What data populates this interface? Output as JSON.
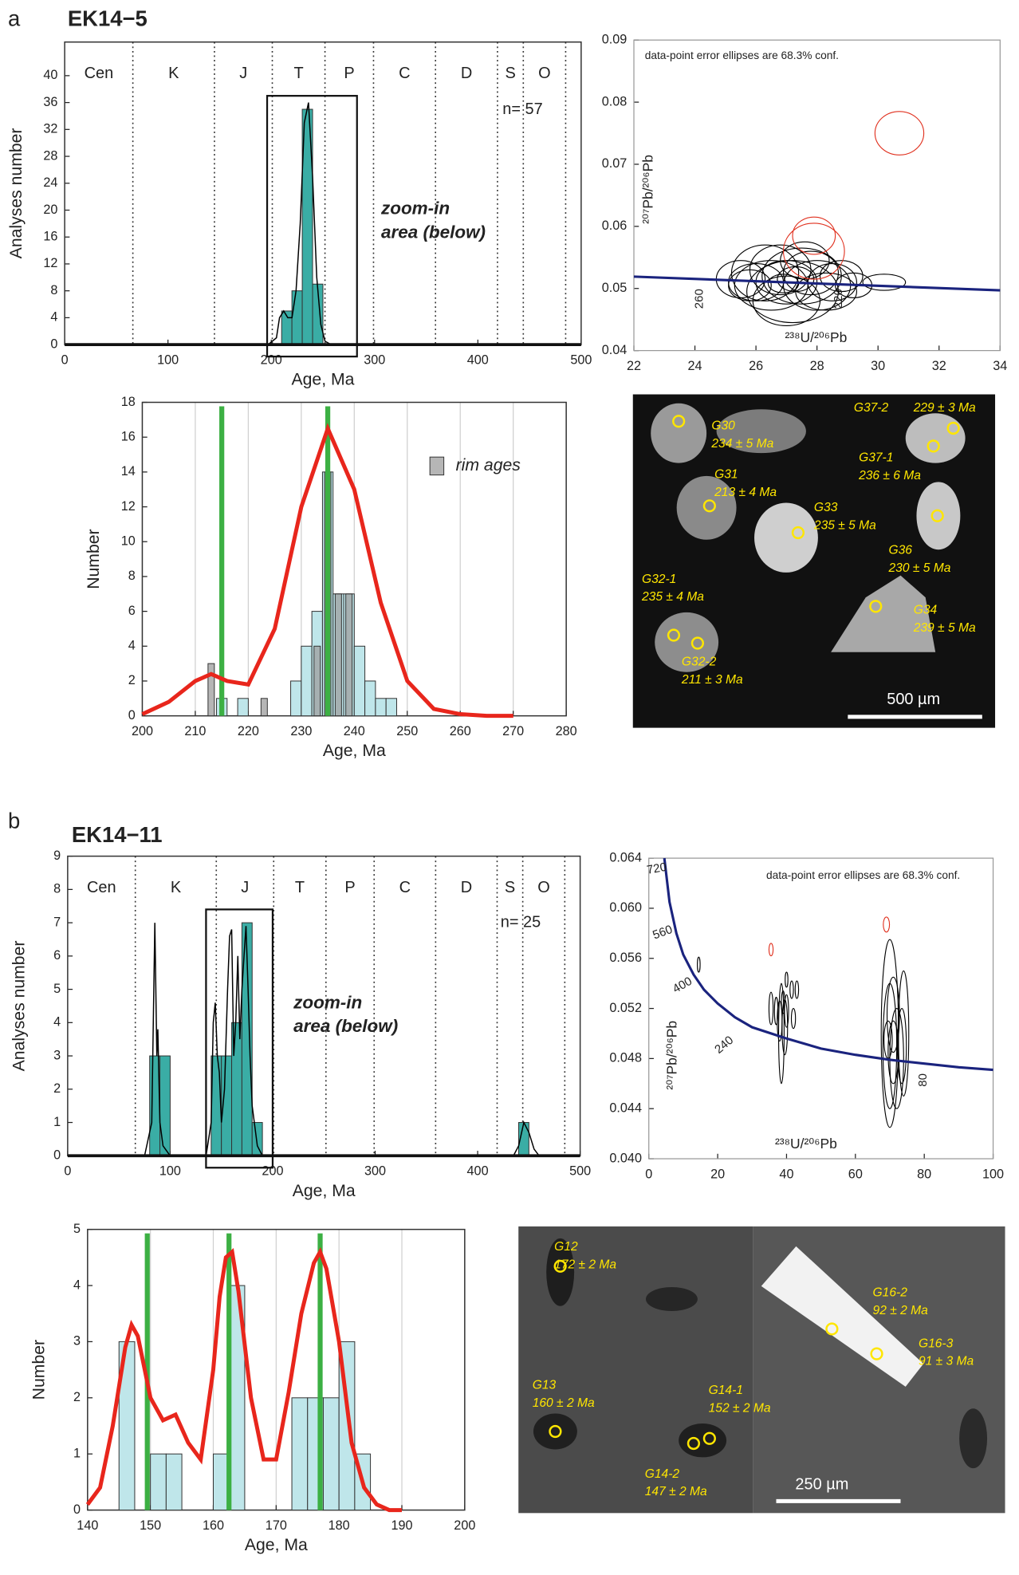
{
  "panels": [
    {
      "letter": "a",
      "sample": "EK14−5"
    },
    {
      "letter": "b",
      "sample": "EK14−11"
    }
  ],
  "chart_data": [
    {
      "type": "histogram",
      "xlabel": "Age, Ma",
      "ylabel": "Analyses number",
      "xlim": [
        0,
        500
      ],
      "ylim": [
        0,
        45
      ],
      "xticks": [
        0,
        100,
        200,
        300,
        400,
        500
      ],
      "yticks": [
        0,
        4,
        8,
        12,
        16,
        20,
        24,
        28,
        32,
        36,
        40
      ],
      "bins": [
        210,
        220,
        230,
        240,
        250
      ],
      "series": [
        {
          "color": "#3aada5",
          "values": [
            5,
            8,
            35,
            9
          ]
        }
      ],
      "curves": [
        {
          "color": "#000000",
          "x": [
            197,
            205,
            208,
            212,
            216,
            220,
            224,
            228,
            232,
            236,
            240,
            244,
            248,
            252,
            258
          ],
          "y": [
            0,
            1,
            4,
            5,
            4,
            4,
            8,
            18,
            33,
            36,
            25,
            10,
            3,
            0.5,
            0
          ]
        }
      ],
      "period_boundaries": [
        66,
        145,
        201,
        252,
        299,
        359,
        419,
        444,
        485
      ],
      "periods": [
        "Cen",
        "K",
        "J",
        "T",
        "P",
        "C",
        "D",
        "S",
        "O"
      ],
      "zoom_box": {
        "x": [
          196,
          283
        ],
        "y": [
          0,
          37
        ]
      },
      "n_label": "n= 57",
      "zoom_label": [
        "zoom-in",
        "area (below)"
      ]
    },
    {
      "type": "concordia",
      "xlabel": "²³⁸U/²⁰⁶Pb",
      "ylabel": "²⁰⁷Pb/²⁰⁶Pb",
      "note": "data-point error ellipses are 68.3% conf.",
      "xlim": [
        22,
        34
      ],
      "ylim": [
        0.04,
        0.09
      ],
      "xticks": [
        22,
        24,
        26,
        28,
        30,
        32,
        34
      ],
      "yticks": [
        0.04,
        0.05,
        0.06,
        0.07,
        0.08,
        0.09
      ],
      "curve": {
        "color": "#1a237e",
        "x": [
          22,
          34
        ],
        "y": [
          0.0519,
          0.0497
        ]
      },
      "age_labels": [
        260,
        220
      ],
      "series": [
        {
          "color": "#000000",
          "ellipses": [
            [
              26.5,
              0.0505,
              1.2,
              0.004
            ],
            [
              27,
              0.051,
              1,
              0.0035
            ],
            [
              27.5,
              0.052,
              1.3,
              0.0045
            ],
            [
              26,
              0.051,
              0.9,
              0.003
            ],
            [
              28,
              0.0505,
              1.1,
              0.004
            ],
            [
              27.2,
              0.0495,
              1.5,
              0.005
            ],
            [
              26.8,
              0.053,
              1,
              0.004
            ],
            [
              27.8,
              0.0525,
              0.9,
              0.0035
            ],
            [
              28.5,
              0.051,
              0.8,
              0.003
            ],
            [
              25.8,
              0.0505,
              0.7,
              0.0025
            ],
            [
              27.3,
              0.0515,
              0.6,
              0.002
            ],
            [
              26.3,
              0.0525,
              1.1,
              0.0045
            ],
            [
              28.3,
              0.0495,
              1,
              0.003
            ],
            [
              29.2,
              0.0505,
              0.6,
              0.002
            ],
            [
              30.2,
              0.051,
              0.7,
              0.0013
            ],
            [
              27,
              0.048,
              1.1,
              0.004
            ],
            [
              27.6,
              0.0545,
              0.8,
              0.003
            ],
            [
              26.9,
              0.0508,
              0.5,
              0.0015
            ],
            [
              25.5,
              0.0515,
              0.8,
              0.003
            ],
            [
              28.8,
              0.052,
              0.7,
              0.0025
            ]
          ]
        },
        {
          "color": "#e0301e",
          "ellipses": [
            [
              30.7,
              0.075,
              0.8,
              0.0035
            ],
            [
              27.9,
              0.0585,
              0.7,
              0.003
            ],
            [
              27.9,
              0.056,
              1,
              0.0045
            ]
          ]
        }
      ]
    },
    {
      "type": "histogram",
      "xlabel": "Age, Ma",
      "ylabel": "Number",
      "xlim": [
        200,
        280
      ],
      "ylim": [
        0,
        18
      ],
      "xticks": [
        200,
        210,
        220,
        230,
        240,
        250,
        260,
        270,
        280
      ],
      "yticks": [
        0,
        2,
        4,
        6,
        8,
        10,
        12,
        14,
        16,
        18
      ],
      "grid": "x",
      "bins": [
        210,
        212,
        214,
        216,
        218,
        220,
        222,
        224,
        226,
        228,
        230,
        232,
        234,
        236,
        238,
        240,
        242,
        244,
        246,
        248
      ],
      "series": [
        {
          "color": "#bfe6ea",
          "values": [
            0,
            0,
            1,
            0,
            1,
            0,
            0,
            0,
            0,
            2,
            4,
            6,
            14,
            7,
            7,
            4,
            2,
            1,
            1
          ]
        },
        {
          "name": "rim ages",
          "color": "#9e9e9e",
          "values": [
            0,
            3,
            0,
            0,
            0,
            0,
            1,
            0,
            0,
            0,
            0,
            4,
            14,
            7,
            7,
            0,
            0,
            0,
            0
          ]
        }
      ],
      "curves": [
        {
          "color": "#e8261c",
          "x": [
            200,
            205,
            210,
            213,
            216,
            220,
            225,
            230,
            235,
            240,
            245,
            250,
            255,
            260,
            265,
            270
          ],
          "y": [
            0.1,
            0.8,
            2,
            2.4,
            2,
            1.8,
            5,
            12,
            16.5,
            13,
            6.5,
            2,
            0.4,
            0.1,
            0,
            0
          ]
        }
      ],
      "markers": {
        "color": "#3cb043",
        "x": [
          215,
          235
        ]
      }
    },
    {
      "type": "histogram",
      "xlabel": "Age, Ma",
      "ylabel": "Analyses number",
      "xlim": [
        0,
        500
      ],
      "ylim": [
        0,
        9
      ],
      "xticks": [
        0,
        100,
        200,
        300,
        400,
        500
      ],
      "yticks": [
        0,
        1,
        2,
        3,
        4,
        5,
        6,
        7,
        8,
        9
      ],
      "bins": [
        80,
        90,
        100,
        110,
        120,
        130,
        140,
        150,
        160,
        170,
        180,
        190,
        200,
        210,
        220,
        230,
        240,
        250,
        260,
        270,
        280,
        290,
        300,
        310,
        320,
        330,
        340,
        350,
        360,
        370,
        380,
        390,
        400,
        410,
        420,
        430,
        440,
        450
      ],
      "series": [
        {
          "color": "#3aada5",
          "values": [
            3,
            3,
            0,
            0,
            0,
            0,
            3,
            3,
            4,
            7,
            1,
            0,
            0,
            0,
            0,
            0,
            0,
            0,
            0,
            0,
            0,
            0,
            0,
            0,
            0,
            0,
            0,
            0,
            0,
            0,
            0,
            0,
            0,
            0,
            0,
            0,
            1
          ]
        }
      ],
      "curves": [
        {
          "color": "#000000",
          "x": [
            75,
            82,
            85,
            87,
            88,
            90,
            93,
            100
          ],
          "y": [
            0,
            1,
            7,
            3,
            3.8,
            1,
            0.3,
            0
          ]
        },
        {
          "color": "#000000",
          "x": [
            135,
            140,
            142,
            144,
            146,
            148,
            150,
            153,
            156,
            158,
            160,
            162,
            164,
            166,
            168,
            170,
            172,
            174,
            176,
            178,
            180,
            185,
            190
          ],
          "y": [
            0,
            1,
            4,
            4.6,
            3,
            2.5,
            1,
            2,
            5,
            6.6,
            6.8,
            3,
            4,
            6,
            3.5,
            5,
            6,
            6.9,
            5,
            3,
            1.5,
            0.3,
            0
          ]
        },
        {
          "color": "#000000",
          "x": [
            435,
            440,
            445,
            450,
            455,
            460
          ],
          "y": [
            0,
            0.3,
            1,
            0.7,
            0.2,
            0
          ]
        }
      ],
      "period_boundaries": [
        66,
        145,
        201,
        252,
        299,
        359,
        419,
        444,
        485
      ],
      "periods": [
        "Cen",
        "K",
        "J",
        "T",
        "P",
        "C",
        "D",
        "S",
        "O"
      ],
      "zoom_box": {
        "x": [
          135,
          200
        ],
        "y": [
          0,
          7.4
        ]
      },
      "n_label": "n= 25",
      "zoom_label": [
        "zoom-in",
        "area (below)"
      ]
    },
    {
      "type": "concordia",
      "xlabel": "²³⁸U/²⁰⁶Pb",
      "ylabel": "²⁰⁷Pb/²⁰⁶Pb",
      "note": "data-point error ellipses are 68.3% conf.",
      "xlim": [
        0,
        100
      ],
      "ylim": [
        0.04,
        0.064
      ],
      "xticks": [
        0,
        20,
        40,
        60,
        80,
        100
      ],
      "yticks": [
        {
          "value": 0.04,
          "label": "0.040"
        },
        {
          "value": 0.044,
          "label": "0.044"
        },
        {
          "value": 0.048,
          "label": "0.048"
        },
        {
          "value": 0.052,
          "label": "0.052"
        },
        {
          "value": 0.056,
          "label": "0.056"
        },
        {
          "value": 0.06,
          "label": "0.060"
        },
        {
          "value": 0.064,
          "label": "0.064"
        }
      ],
      "curve": {
        "color": "#1a237e",
        "x": [
          4.5,
          6,
          8,
          10,
          13,
          16,
          20,
          25,
          30,
          40,
          50,
          60,
          70,
          80,
          90,
          100
        ],
        "y": [
          0.064,
          0.0605,
          0.058,
          0.0563,
          0.0547,
          0.0535,
          0.0524,
          0.0513,
          0.0505,
          0.0496,
          0.0488,
          0.0483,
          0.0479,
          0.0476,
          0.0473,
          0.0471
        ]
      },
      "age_labels": [
        720,
        560,
        400,
        240,
        80
      ],
      "series": [
        {
          "color": "#000000",
          "ellipses": [
            [
              35.5,
              0.052,
              0.6,
              0.0013
            ],
            [
              37,
              0.0518,
              0.5,
              0.0011
            ],
            [
              38,
              0.051,
              0.7,
              0.0016
            ],
            [
              39,
              0.0525,
              0.5,
              0.0009
            ],
            [
              40,
              0.0518,
              0.6,
              0.0013
            ],
            [
              39.5,
              0.0505,
              0.8,
              0.0022
            ],
            [
              38.5,
              0.05,
              0.8,
              0.004
            ],
            [
              41.5,
              0.0535,
              0.5,
              0.0007
            ],
            [
              43,
              0.0535,
              0.5,
              0.0007
            ],
            [
              40,
              0.0543,
              0.4,
              0.0006
            ],
            [
              42,
              0.0512,
              0.6,
              0.0008
            ],
            [
              14.5,
              0.0555,
              0.4,
              0.0006
            ],
            [
              70,
              0.05,
              2.5,
              0.0075
            ],
            [
              70,
              0.049,
              2,
              0.005
            ],
            [
              71,
              0.0515,
              1.8,
              0.003
            ],
            [
              72,
              0.048,
              2,
              0.004
            ],
            [
              74,
              0.05,
              1.5,
              0.005
            ],
            [
              73.5,
              0.049,
              1.3,
              0.003
            ],
            [
              71,
              0.0485,
              1.5,
              0.0025
            ],
            [
              69.5,
              0.0495,
              1.2,
              0.0015
            ]
          ]
        },
        {
          "color": "#e0301e",
          "ellipses": [
            [
              35.5,
              0.0567,
              0.6,
              0.0005
            ],
            [
              69,
              0.0587,
              0.9,
              0.0006
            ]
          ]
        }
      ]
    },
    {
      "type": "histogram",
      "xlabel": "Age, Ma",
      "ylabel": "Number",
      "xlim": [
        140,
        200
      ],
      "ylim": [
        0,
        5
      ],
      "xticks": [
        140,
        150,
        160,
        170,
        180,
        190,
        200
      ],
      "yticks": [
        0,
        1,
        2,
        3,
        4,
        5
      ],
      "grid": "x",
      "bins": [
        145,
        147.5,
        150,
        152.5,
        155,
        157.5,
        160,
        162.5,
        165,
        167.5,
        170,
        172.5,
        175,
        177.5,
        180,
        182.5,
        185
      ],
      "series": [
        {
          "color": "#bfe6ea",
          "values": [
            3,
            0,
            1,
            1,
            0,
            0,
            1,
            4,
            0,
            0,
            0,
            2,
            2,
            2,
            3,
            1
          ]
        }
      ],
      "curves": [
        {
          "color": "#e8261c",
          "x": [
            140,
            142,
            144,
            146,
            147,
            148,
            150,
            152,
            154,
            156,
            158,
            160,
            161,
            162,
            163,
            164,
            166,
            168,
            170,
            172,
            174,
            176,
            177,
            178,
            180,
            182,
            184,
            186,
            188,
            190
          ],
          "y": [
            0.1,
            0.4,
            1.5,
            2.9,
            3.3,
            3.1,
            2,
            1.6,
            1.7,
            1.2,
            0.9,
            2.5,
            3.8,
            4.5,
            4.6,
            3.9,
            2,
            0.9,
            0.9,
            2.1,
            3.5,
            4.4,
            4.6,
            4.3,
            3,
            1.2,
            0.4,
            0.1,
            0,
            0
          ]
        }
      ],
      "markers": {
        "color": "#3cb043",
        "x": [
          149.5,
          162.5,
          177
        ]
      }
    }
  ],
  "images": [
    {
      "labels": [
        {
          "name": "G30",
          "age": "234 ± 5 Ma"
        },
        {
          "name": "G31",
          "age": "213 ± 4 Ma"
        },
        {
          "name": "G33",
          "age": "235 ± 5 Ma"
        },
        {
          "name": "G37-2",
          "age": "229 ± 3 Ma"
        },
        {
          "name": "G37-1",
          "age": "236 ± 6 Ma"
        },
        {
          "name": "G36",
          "age": "230 ± 5 Ma"
        },
        {
          "name": "G32-1",
          "age": "235 ± 4 Ma"
        },
        {
          "name": "G34",
          "age": "239 ± 5 Ma"
        },
        {
          "name": "G32-2",
          "age": "211 ± 3 Ma"
        }
      ],
      "scale": "500 µm"
    },
    {
      "labels": [
        {
          "name": "G12",
          "age": "172 ± 2 Ma"
        },
        {
          "name": "G16-2",
          "age": "92 ± 2 Ma"
        },
        {
          "name": "G16-3",
          "age": "91 ± 3 Ma"
        },
        {
          "name": "G13",
          "age": "160 ± 2 Ma"
        },
        {
          "name": "G14-1",
          "age": "152 ± 2 Ma"
        },
        {
          "name": "G14-2",
          "age": "147 ± 2 Ma"
        }
      ],
      "scale": "250 µm"
    }
  ]
}
